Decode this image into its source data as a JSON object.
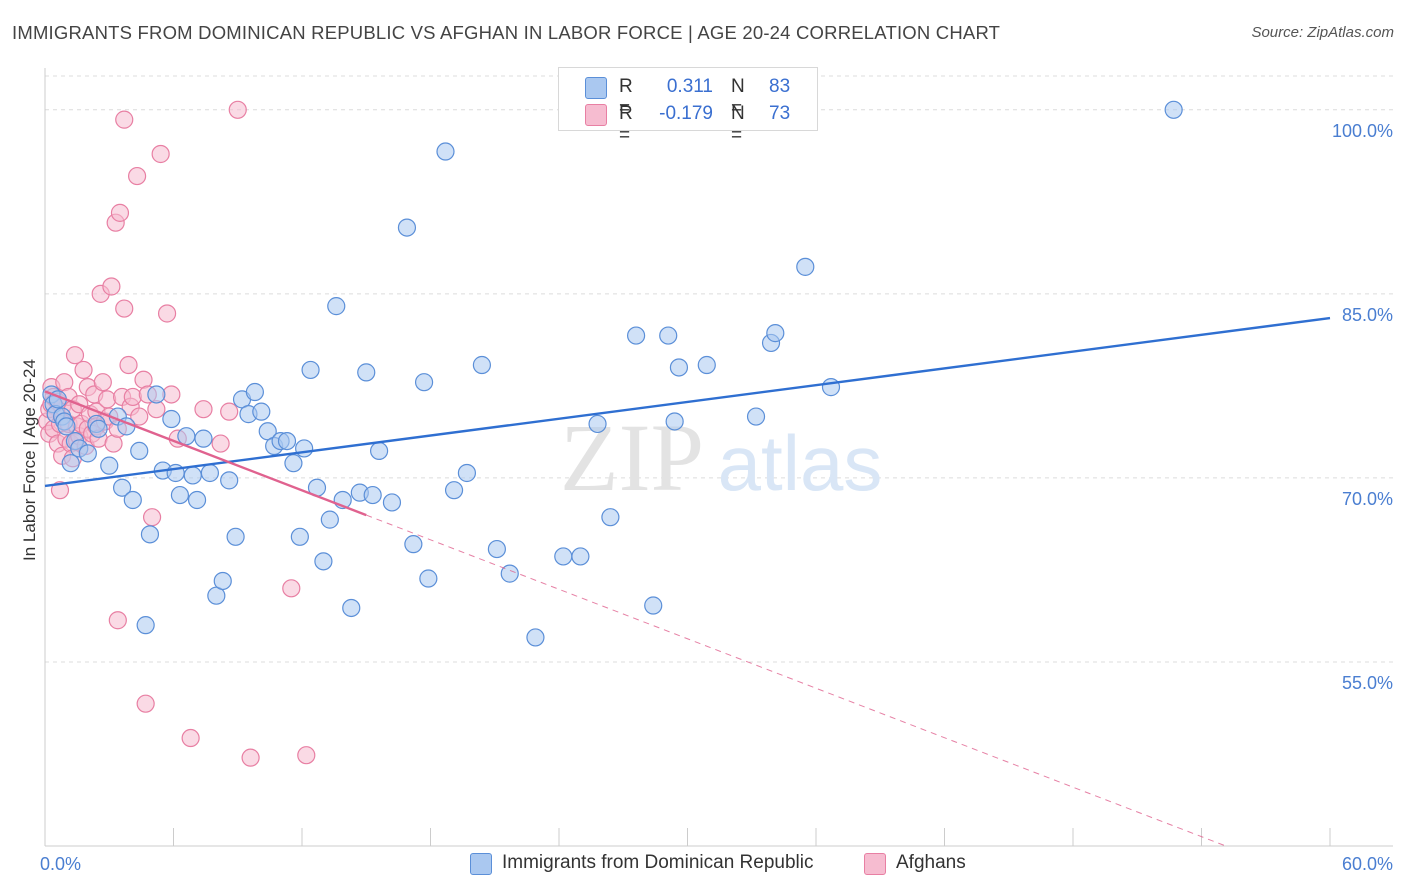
{
  "header": {
    "title": "IMMIGRANTS FROM DOMINICAN REPUBLIC VS AFGHAN IN LABOR FORCE | AGE 20-24 CORRELATION CHART",
    "source": "Source: ZipAtlas.com"
  },
  "watermark": {
    "zip": "ZIP",
    "atlas": "atlas"
  },
  "legend": {
    "items": [
      {
        "r_label": "R =",
        "r_value": "0.311",
        "n_label": "N =",
        "n_value": "83"
      },
      {
        "r_label": "R =",
        "r_value": "-0.179",
        "n_label": "N =",
        "n_value": "73"
      }
    ]
  },
  "colors": {
    "blue_fill": "#aac8f0",
    "blue_stroke": "#5b8fd8",
    "blue_line": "#2f6fd1",
    "pink_fill": "#f6bcd0",
    "pink_stroke": "#e87fa3",
    "pink_line": "#e0628f",
    "tick_text": "#4a7ed1",
    "grid": "#dcdcdc"
  },
  "chart_data": {
    "type": "scatter",
    "title": "IMMIGRANTS FROM DOMINICAN REPUBLIC VS AFGHAN IN LABOR FORCE | AGE 20-24 CORRELATION CHART",
    "xlabel": "",
    "ylabel": "In Labor Force | Age 20-24",
    "xlim": [
      0,
      60
    ],
    "ylim": [
      40,
      103
    ],
    "x_tick_labels": [
      "0.0%",
      "60.0%"
    ],
    "y_ticks": [
      {
        "value": 55,
        "label": "55.0%"
      },
      {
        "value": 70,
        "label": "70.0%"
      },
      {
        "value": 85,
        "label": "85.0%"
      },
      {
        "value": 100,
        "label": "100.0%"
      }
    ],
    "grid": true,
    "legend_position": "top-center",
    "series": [
      {
        "name": "Immigrants from Dominican Republic",
        "color": "blue",
        "r": 0.311,
        "n": 83,
        "trend": {
          "x": [
            0.0,
            60.0
          ],
          "y": [
            69.35,
            83.03
          ],
          "style": "solid"
        },
        "points": [
          [
            0.3,
            76.8
          ],
          [
            0.4,
            76.0
          ],
          [
            0.5,
            75.2
          ],
          [
            0.6,
            76.4
          ],
          [
            0.8,
            75.0
          ],
          [
            0.9,
            74.6
          ],
          [
            1.0,
            74.2
          ],
          [
            1.2,
            71.2
          ],
          [
            1.4,
            73.0
          ],
          [
            1.6,
            72.4
          ],
          [
            2.0,
            72.0
          ],
          [
            2.4,
            74.4
          ],
          [
            2.5,
            74.0
          ],
          [
            3.0,
            71.0
          ],
          [
            3.4,
            75.0
          ],
          [
            3.6,
            69.2
          ],
          [
            3.8,
            74.2
          ],
          [
            4.1,
            68.2
          ],
          [
            4.4,
            72.2
          ],
          [
            4.7,
            58.0
          ],
          [
            4.9,
            65.4
          ],
          [
            5.2,
            76.8
          ],
          [
            5.5,
            70.6
          ],
          [
            5.9,
            74.8
          ],
          [
            6.1,
            70.4
          ],
          [
            6.3,
            68.6
          ],
          [
            6.6,
            73.4
          ],
          [
            6.9,
            70.2
          ],
          [
            7.1,
            68.2
          ],
          [
            7.4,
            73.2
          ],
          [
            7.7,
            70.4
          ],
          [
            8.0,
            60.4
          ],
          [
            8.3,
            61.6
          ],
          [
            8.6,
            69.8
          ],
          [
            8.9,
            65.2
          ],
          [
            9.2,
            76.4
          ],
          [
            9.5,
            75.2
          ],
          [
            9.8,
            77.0
          ],
          [
            10.1,
            75.4
          ],
          [
            10.4,
            73.8
          ],
          [
            10.7,
            72.6
          ],
          [
            11.0,
            73.0
          ],
          [
            11.3,
            73.0
          ],
          [
            11.6,
            71.2
          ],
          [
            11.9,
            65.2
          ],
          [
            12.1,
            72.4
          ],
          [
            12.4,
            78.8
          ],
          [
            12.7,
            69.2
          ],
          [
            13.0,
            63.2
          ],
          [
            13.3,
            66.6
          ],
          [
            13.6,
            84.0
          ],
          [
            13.9,
            68.2
          ],
          [
            14.3,
            59.4
          ],
          [
            14.7,
            68.8
          ],
          [
            15.0,
            78.6
          ],
          [
            15.3,
            68.6
          ],
          [
            15.6,
            72.2
          ],
          [
            16.2,
            68.0
          ],
          [
            16.9,
            90.4
          ],
          [
            17.2,
            64.6
          ],
          [
            17.7,
            77.8
          ],
          [
            17.9,
            61.8
          ],
          [
            18.7,
            96.6
          ],
          [
            19.1,
            69.0
          ],
          [
            19.7,
            70.4
          ],
          [
            20.4,
            79.2
          ],
          [
            21.1,
            64.2
          ],
          [
            21.7,
            62.2
          ],
          [
            22.9,
            57.0
          ],
          [
            24.2,
            63.6
          ],
          [
            25.0,
            63.6
          ],
          [
            25.8,
            74.4
          ],
          [
            26.4,
            66.8
          ],
          [
            27.6,
            81.6
          ],
          [
            28.4,
            59.6
          ],
          [
            29.1,
            81.6
          ],
          [
            29.4,
            74.6
          ],
          [
            29.6,
            79.0
          ],
          [
            30.9,
            79.2
          ],
          [
            33.2,
            75.0
          ],
          [
            33.9,
            81.0
          ],
          [
            34.1,
            81.8
          ],
          [
            35.5,
            87.2
          ],
          [
            36.7,
            77.4
          ],
          [
            52.7,
            100.0
          ]
        ]
      },
      {
        "name": "Afghans",
        "color": "pink",
        "r": -0.179,
        "n": 73,
        "trend": {
          "x": [
            0.0,
            60.0
          ],
          "y": [
            77.05,
            36.73
          ],
          "style": "solid-then-dashed",
          "solid_until_x": 15.0
        },
        "points": [
          [
            0.1,
            74.6
          ],
          [
            0.2,
            75.6
          ],
          [
            0.2,
            73.6
          ],
          [
            0.3,
            77.4
          ],
          [
            0.3,
            76.0
          ],
          [
            0.4,
            74.0
          ],
          [
            0.4,
            76.6
          ],
          [
            0.5,
            75.2
          ],
          [
            0.6,
            72.8
          ],
          [
            0.6,
            76.2
          ],
          [
            0.7,
            69.0
          ],
          [
            0.7,
            74.4
          ],
          [
            0.8,
            75.8
          ],
          [
            0.8,
            71.8
          ],
          [
            0.9,
            77.8
          ],
          [
            1.0,
            73.2
          ],
          [
            1.1,
            74.4
          ],
          [
            1.1,
            76.6
          ],
          [
            1.2,
            72.8
          ],
          [
            1.3,
            75.6
          ],
          [
            1.3,
            71.6
          ],
          [
            1.4,
            80.0
          ],
          [
            1.5,
            74.2
          ],
          [
            1.5,
            73.0
          ],
          [
            1.6,
            76.0
          ],
          [
            1.6,
            73.4
          ],
          [
            1.7,
            74.4
          ],
          [
            1.8,
            78.8
          ],
          [
            1.9,
            72.6
          ],
          [
            2.0,
            77.4
          ],
          [
            2.0,
            74.0
          ],
          [
            2.1,
            75.2
          ],
          [
            2.2,
            73.6
          ],
          [
            2.3,
            76.8
          ],
          [
            2.4,
            75.4
          ],
          [
            2.4,
            74.2
          ],
          [
            2.5,
            73.2
          ],
          [
            2.6,
            85.0
          ],
          [
            2.7,
            77.8
          ],
          [
            2.8,
            74.6
          ],
          [
            2.9,
            76.4
          ],
          [
            3.0,
            75.0
          ],
          [
            3.1,
            85.6
          ],
          [
            3.2,
            72.8
          ],
          [
            3.3,
            90.8
          ],
          [
            3.4,
            74.0
          ],
          [
            3.4,
            58.4
          ],
          [
            3.5,
            91.6
          ],
          [
            3.6,
            76.6
          ],
          [
            3.7,
            83.8
          ],
          [
            3.7,
            99.2
          ],
          [
            3.9,
            79.2
          ],
          [
            4.0,
            75.8
          ],
          [
            4.1,
            76.6
          ],
          [
            4.3,
            94.6
          ],
          [
            4.4,
            75.0
          ],
          [
            4.6,
            78.0
          ],
          [
            4.7,
            51.6
          ],
          [
            4.8,
            76.8
          ],
          [
            5.0,
            66.8
          ],
          [
            5.2,
            75.6
          ],
          [
            5.4,
            96.4
          ],
          [
            5.7,
            83.4
          ],
          [
            5.9,
            76.8
          ],
          [
            6.2,
            73.2
          ],
          [
            6.8,
            48.8
          ],
          [
            7.4,
            75.6
          ],
          [
            8.2,
            72.8
          ],
          [
            8.6,
            75.4
          ],
          [
            9.0,
            100.0
          ],
          [
            9.6,
            47.2
          ],
          [
            11.5,
            61.0
          ],
          [
            12.2,
            47.4
          ]
        ]
      }
    ]
  }
}
